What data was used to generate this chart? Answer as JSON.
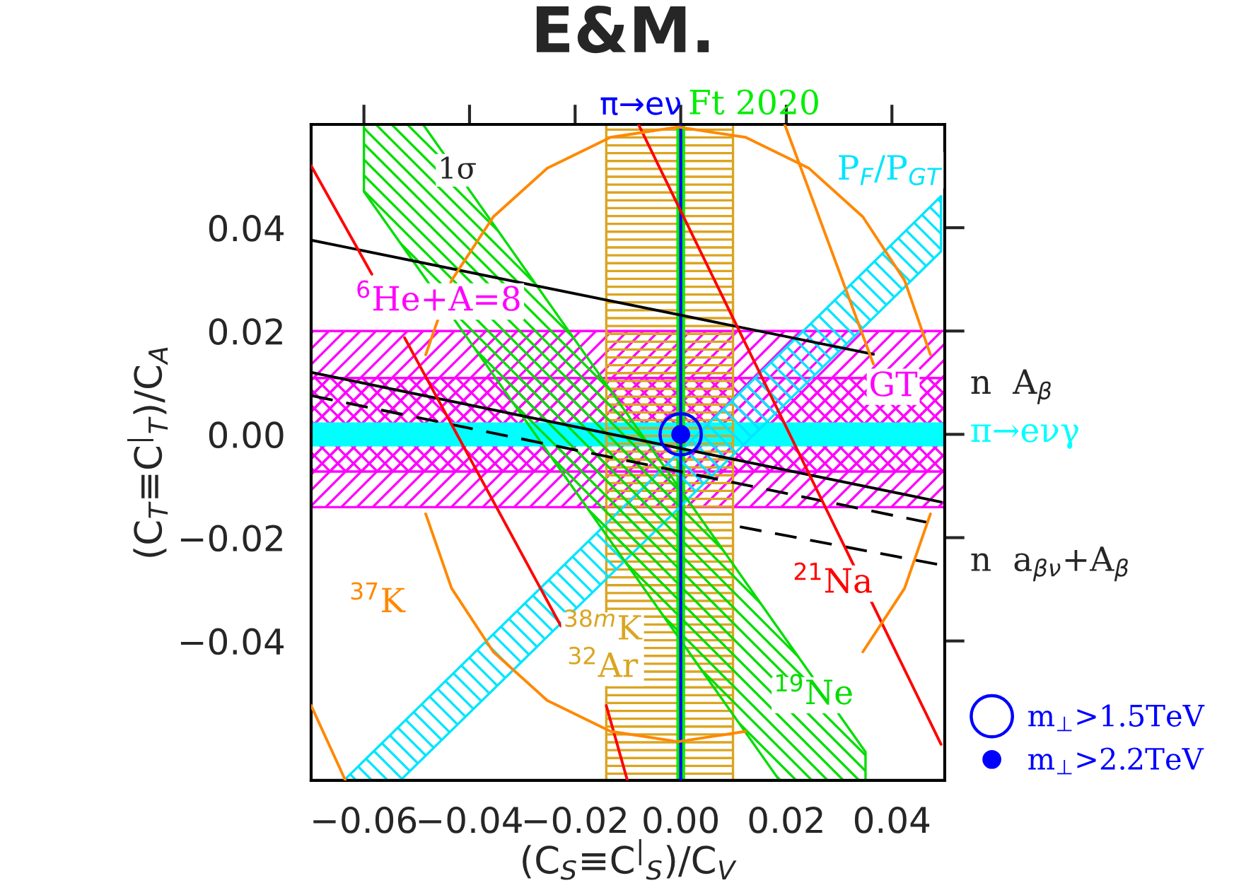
{
  "chart_data": {
    "type": "line",
    "title": "E&M.",
    "xlabel": "(C$_{S}$≡C$^{|}$$_{S}$)/C$_{V}$",
    "ylabel": "(C$_{T}$≡C$^{|}$$_{T}$)/C$_{A}$",
    "xlim": [
      -0.07,
      0.05
    ],
    "ylim": [
      -0.067,
      0.06
    ],
    "xticks": [
      {
        "value": -0.06,
        "label": "−0.06"
      },
      {
        "value": -0.04,
        "label": "−0.04"
      },
      {
        "value": -0.02,
        "label": "−0.02"
      },
      {
        "value": 0.0,
        "label": "0.00"
      },
      {
        "value": 0.02,
        "label": "0.02"
      },
      {
        "value": 0.04,
        "label": "0.04"
      }
    ],
    "yticks": [
      {
        "value": -0.04,
        "label": "−0.04"
      },
      {
        "value": -0.02,
        "label": "−0.02"
      },
      {
        "value": 0.0,
        "label": "0.00"
      },
      {
        "value": 0.02,
        "label": "0.02"
      },
      {
        "value": 0.04,
        "label": "0.04"
      }
    ],
    "legend": "bottom right",
    "annotations": [
      "1σ",
      "n  A$_{β}$",
      "n  a$_{βν}$+A$_{β}$"
    ],
    "bands": [
      {
        "axis": "y",
        "from": -0.0141,
        "to": 0.02,
        "label": "$^{6}$He+A=8",
        "color": "#ff00ff"
      },
      {
        "axis": "y",
        "from": -0.0072,
        "to": 0.0109,
        "label": "GT",
        "color": "#ff00ff"
      },
      {
        "axis": "y",
        "from": -0.0021,
        "to": 0.0021,
        "label": "π→eνγ",
        "color": "#00ffff"
      },
      {
        "axis": "x",
        "from": -0.0141,
        "to": 0.0099,
        "label": "$^{38m}$K\n$^{32}$Ar",
        "color": "#daa520"
      },
      {
        "axis": "x",
        "from": -0.0006,
        "to": 0.0006,
        "label": "Ft 2020",
        "color": "#00ee00"
      }
    ],
    "ref_lines": [
      {
        "axis": "x",
        "value": 0.0,
        "label": "π→eν",
        "color": "#0000ff"
      }
    ],
    "series": [
      {
        "name": "P$_{F}$/P$_{GT}$",
        "color": "#00e5ff",
        "x": [
          -0.0638,
          -0.0531,
          0.0386,
          0.0493
        ],
        "values": [
          null,
          null,
          null,
          null
        ],
        "lower": [
          -0.067,
          -0.067,
          0.0247,
          0.0354
        ],
        "upper": [
          -0.067,
          -0.0563,
          0.0354,
          0.0461
        ]
      },
      {
        "name": "$^{19}$Ne",
        "color": "#00dd00",
        "x": [
          -0.06,
          -0.0488,
          0.0187,
          0.035
        ],
        "values": [
          null,
          null,
          null,
          null
        ],
        "lower": [
          0.047,
          0.0308,
          -0.067,
          -0.067
        ],
        "upper": [
          0.06,
          0.06,
          -0.0379,
          -0.0615
        ]
      },
      {
        "color": "#000000",
        "x": [
          -0.07,
          0.0365
        ],
        "values": [
          0.0376,
          0.0155
        ]
      },
      {
        "color": "#000000",
        "x": [
          -0.07,
          0.0493
        ],
        "values": [
          0.012,
          -0.0131
        ]
      },
      {
        "color": "#000000",
        "line_style": "dashed",
        "x": [
          -0.07,
          0.0493
        ],
        "values": [
          0.0075,
          -0.0176
        ]
      },
      {
        "color": "#000000",
        "line_style": "dashed",
        "x": [
          0.0112,
          0.0493
        ],
        "values": [
          -0.0179,
          -0.0253
        ]
      },
      {
        "name": "$^{21}$Na",
        "color": "#ff0000",
        "x": [
          -0.008,
          0.0493
        ],
        "values": [
          0.06,
          -0.06
        ]
      },
      {
        "color": "#ff0000",
        "x": [
          -0.07,
          -0.0585
        ],
        "values": [
          0.052,
          0.031
        ]
      },
      {
        "color": "#ff0000",
        "x": [
          -0.0523,
          -0.0227
        ],
        "values": [
          0.0187,
          -0.0371
        ]
      },
      {
        "color": "#ff0000",
        "x": [
          -0.0141,
          -0.0101
        ],
        "values": [
          -0.0525,
          -0.067
        ]
      },
      {
        "name": "$^{37}$K",
        "color": "#ff8800",
        "x": [
          0.0473,
          0.0424,
          0.0345,
          0.0243,
          0.0123,
          -0.0005,
          -0.0133,
          -0.0253,
          -0.0355,
          -0.0434,
          -0.0483
        ],
        "values": [
          0.0154,
          0.0298,
          0.0421,
          0.0515,
          0.0575,
          0.0595,
          0.0575,
          0.0515,
          0.0421,
          0.0298,
          0.0154
        ]
      },
      {
        "color": "#ff8800",
        "x": [
          -0.0483,
          -0.0434,
          -0.0355,
          -0.0253,
          -0.0133,
          -0.0005,
          0.0123,
          0.0243,
          0.0345,
          0.0424,
          0.0473
        ],
        "values": [
          -0.0154,
          -0.0298,
          -0.0421,
          -0.0515,
          -0.0575,
          -0.0595,
          -0.0575,
          null,
          -0.0421,
          -0.0298,
          -0.0154
        ]
      },
      {
        "color": "#ff8800",
        "x": [
          -0.07,
          -0.0635
        ],
        "values": [
          -0.0525,
          -0.067
        ]
      },
      {
        "color": "#ff8800",
        "x": [
          0.0197,
          0.0365
        ],
        "values": [
          0.06,
          0.0136
        ]
      },
      {
        "type": "scatter",
        "name": "m$_{⊥}$>1.5TeV",
        "color": "#0000ff",
        "x": [
          0.0
        ],
        "values": [
          0.0
        ]
      },
      {
        "type": "scatter",
        "name": "m$_{⊥}$>2.2TeV",
        "color": "#0000ff",
        "x": [
          0.0
        ],
        "values": [
          0.0
        ]
      }
    ]
  }
}
